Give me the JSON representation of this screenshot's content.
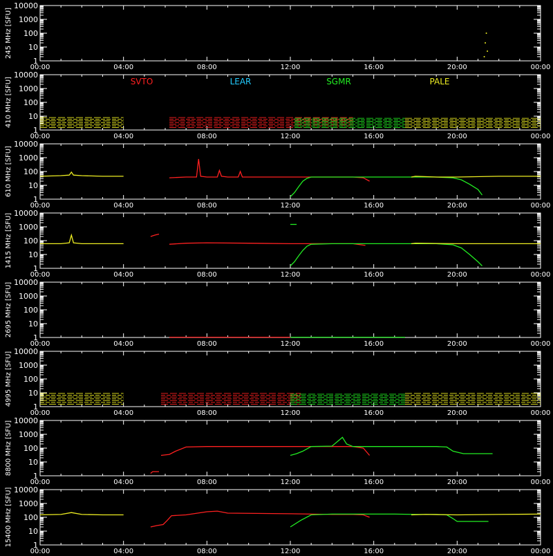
{
  "x_tick_labels": [
    "00:00",
    "04:00",
    "08:00",
    "12:00",
    "16:00",
    "20:00",
    "00:00"
  ],
  "y_tick_labels": [
    "1",
    "10",
    "100",
    "1000",
    "10000"
  ],
  "legend": [
    {
      "name": "SVTO",
      "color": "#ff2020"
    },
    {
      "name": "LEAR",
      "color": "#22ccff"
    },
    {
      "name": "SGMR",
      "color": "#22ee22"
    },
    {
      "name": "PALE",
      "color": "#eeee22"
    }
  ],
  "chart_data": {
    "type": "line",
    "xunit": "hours UT",
    "xlim": [
      0,
      24
    ],
    "ylim": [
      1,
      10000
    ],
    "yscale": "log",
    "background": "#000000",
    "panels": [
      {
        "ylabel": "245 MHz [SFU]",
        "series": [
          {
            "station": "PALE",
            "style": "sparse",
            "points": [
              [
                21.3,
                2
              ],
              [
                21.35,
                20
              ],
              [
                21.4,
                100
              ],
              [
                21.45,
                5
              ]
            ]
          }
        ]
      },
      {
        "ylabel": "410 MHz [SFU]",
        "series": [
          {
            "station": "PALE",
            "style": "band",
            "range": [
              0,
              4
            ],
            "band": [
              1.5,
              8
            ]
          },
          {
            "station": "SVTO",
            "style": "band",
            "range": [
              6.2,
              15
            ],
            "band": [
              1.5,
              8
            ]
          },
          {
            "station": "SGMR",
            "style": "band",
            "range": [
              12.2,
              17.5
            ],
            "band": [
              1.5,
              7
            ]
          },
          {
            "station": "PALE",
            "style": "band",
            "range": [
              17.5,
              24
            ],
            "band": [
              1.5,
              7
            ]
          }
        ]
      },
      {
        "ylabel": "610 MHz [SFU]",
        "series": [
          {
            "station": "PALE",
            "points": [
              [
                0,
                45
              ],
              [
                1.0,
                50
              ],
              [
                1.4,
                55
              ],
              [
                1.5,
                90
              ],
              [
                1.6,
                55
              ],
              [
                2.0,
                50
              ],
              [
                3.0,
                45
              ],
              [
                4.0,
                45
              ]
            ]
          },
          {
            "station": "SVTO",
            "points": [
              [
                6.2,
                35
              ],
              [
                7.0,
                40
              ],
              [
                7.5,
                40
              ],
              [
                7.6,
                800
              ],
              [
                7.7,
                45
              ],
              [
                8.0,
                40
              ],
              [
                8.5,
                40
              ],
              [
                8.6,
                120
              ],
              [
                8.7,
                45
              ],
              [
                9.0,
                40
              ],
              [
                9.5,
                40
              ],
              [
                9.6,
                100
              ],
              [
                9.7,
                40
              ],
              [
                11.0,
                40
              ],
              [
                13.0,
                40
              ],
              [
                14.0,
                40
              ],
              [
                15.0,
                40
              ],
              [
                15.5,
                35
              ],
              [
                15.8,
                20
              ]
            ]
          },
          {
            "station": "SGMR",
            "points": [
              [
                12.0,
                1.5
              ],
              [
                12.2,
                3
              ],
              [
                12.4,
                8
              ],
              [
                12.6,
                20
              ],
              [
                12.8,
                32
              ],
              [
                13.0,
                40
              ],
              [
                14.0,
                40
              ],
              [
                16.0,
                40
              ],
              [
                18.0,
                40
              ],
              [
                19.0,
                40
              ],
              [
                19.8,
                35
              ],
              [
                20.2,
                25
              ],
              [
                20.6,
                12
              ],
              [
                21.0,
                5
              ],
              [
                21.2,
                2
              ]
            ]
          },
          {
            "station": "PALE",
            "points": [
              [
                17.8,
                40
              ],
              [
                18.0,
                45
              ],
              [
                19.0,
                40
              ],
              [
                20.0,
                40
              ],
              [
                22.0,
                45
              ],
              [
                24.0,
                45
              ]
            ]
          }
        ]
      },
      {
        "ylabel": "1415 MHz [SFU]",
        "series": [
          {
            "station": "PALE",
            "points": [
              [
                0,
                60
              ],
              [
                1.0,
                60
              ],
              [
                1.4,
                70
              ],
              [
                1.5,
                250
              ],
              [
                1.6,
                70
              ],
              [
                2.0,
                60
              ],
              [
                3.0,
                60
              ],
              [
                4.0,
                60
              ]
            ]
          },
          {
            "station": "SVTO",
            "points": [
              [
                5.3,
                200
              ],
              [
                5.5,
                250
              ],
              [
                5.7,
                300
              ]
            ]
          },
          {
            "station": "SVTO",
            "points": [
              [
                6.2,
                55
              ],
              [
                7.0,
                65
              ],
              [
                8.0,
                70
              ],
              [
                10.0,
                65
              ],
              [
                12.0,
                60
              ],
              [
                14.0,
                60
              ],
              [
                15.0,
                60
              ],
              [
                15.6,
                45
              ]
            ]
          },
          {
            "station": "SGMR",
            "points": [
              [
                12.0,
                1500
              ],
              [
                12.3,
                1500
              ]
            ]
          },
          {
            "station": "SGMR",
            "points": [
              [
                12.0,
                1.5
              ],
              [
                12.2,
                3
              ],
              [
                12.4,
                8
              ],
              [
                12.6,
                20
              ],
              [
                12.8,
                40
              ],
              [
                13.0,
                55
              ],
              [
                14.0,
                60
              ],
              [
                16.0,
                60
              ],
              [
                18.0,
                60
              ],
              [
                19.0,
                60
              ],
              [
                19.8,
                50
              ],
              [
                20.2,
                30
              ],
              [
                20.6,
                10
              ],
              [
                21.0,
                3
              ],
              [
                21.2,
                1.5
              ]
            ]
          },
          {
            "station": "PALE",
            "points": [
              [
                17.8,
                60
              ],
              [
                18.0,
                65
              ],
              [
                20.0,
                60
              ],
              [
                22.0,
                60
              ],
              [
                24.0,
                60
              ]
            ]
          }
        ]
      },
      {
        "ylabel": "2695 MHz [SFU]",
        "series": [
          {
            "station": "SVTO",
            "points": [
              [
                6.2,
                1.05
              ],
              [
                12.0,
                1.05
              ]
            ]
          },
          {
            "station": "SGMR",
            "points": [
              [
                12.0,
                1.05
              ],
              [
                17.5,
                1.05
              ]
            ]
          }
        ]
      },
      {
        "ylabel": "4995 MHz [SFU]",
        "series": [
          {
            "station": "PALE",
            "style": "band",
            "range": [
              0,
              4
            ],
            "band": [
              1.5,
              9
            ]
          },
          {
            "station": "SVTO",
            "style": "band",
            "range": [
              5.8,
              12.5
            ],
            "band": [
              1.5,
              9
            ]
          },
          {
            "station": "SGMR",
            "style": "band",
            "range": [
              12.0,
              17.5
            ],
            "band": [
              1.5,
              8
            ]
          },
          {
            "station": "PALE",
            "style": "band",
            "range": [
              17.5,
              24
            ],
            "band": [
              1.5,
              9
            ]
          }
        ]
      },
      {
        "ylabel": "8800 MHz [SFU]",
        "series": [
          {
            "station": "SVTO",
            "points": [
              [
                5.3,
                1.5
              ],
              [
                5.4,
                2
              ],
              [
                5.7,
                2
              ]
            ]
          },
          {
            "station": "SVTO",
            "points": [
              [
                5.8,
                30
              ],
              [
                6.2,
                35
              ],
              [
                6.5,
                60
              ],
              [
                7.0,
                120
              ],
              [
                8.0,
                130
              ],
              [
                10.0,
                130
              ],
              [
                12.0,
                130
              ],
              [
                14.0,
                130
              ],
              [
                15.0,
                130
              ],
              [
                15.5,
                100
              ],
              [
                15.8,
                30
              ]
            ]
          },
          {
            "station": "SGMR",
            "points": [
              [
                12.0,
                30
              ],
              [
                12.3,
                40
              ],
              [
                12.6,
                60
              ],
              [
                13.0,
                130
              ],
              [
                14.0,
                140
              ],
              [
                14.5,
                600
              ],
              [
                14.7,
                200
              ],
              [
                15.0,
                130
              ],
              [
                17.0,
                130
              ],
              [
                19.0,
                130
              ],
              [
                19.5,
                120
              ],
              [
                19.8,
                60
              ],
              [
                20.3,
                40
              ],
              [
                21.0,
                40
              ],
              [
                21.7,
                40
              ]
            ]
          }
        ]
      },
      {
        "ylabel": "15400 MHz [SFU]",
        "series": [
          {
            "station": "PALE",
            "points": [
              [
                0,
                150
              ],
              [
                1.0,
                160
              ],
              [
                1.5,
                220
              ],
              [
                2.0,
                160
              ],
              [
                3.0,
                150
              ],
              [
                4.0,
                150
              ]
            ]
          },
          {
            "station": "SVTO",
            "points": [
              [
                5.3,
                20
              ],
              [
                5.6,
                25
              ],
              [
                5.9,
                30
              ],
              [
                6.1,
                60
              ],
              [
                6.3,
                130
              ],
              [
                7.0,
                150
              ],
              [
                8.0,
                250
              ],
              [
                8.5,
                280
              ],
              [
                9.0,
                200
              ],
              [
                12.0,
                180
              ],
              [
                13.0,
                170
              ],
              [
                14.0,
                160
              ],
              [
                15.0,
                160
              ],
              [
                15.5,
                150
              ],
              [
                15.8,
                100
              ]
            ]
          },
          {
            "station": "SGMR",
            "points": [
              [
                12.0,
                20
              ],
              [
                12.5,
                60
              ],
              [
                13.0,
                150
              ],
              [
                14.0,
                170
              ],
              [
                16.0,
                170
              ],
              [
                17.0,
                170
              ],
              [
                18.0,
                160
              ],
              [
                19.0,
                160
              ],
              [
                19.5,
                150
              ],
              [
                19.8,
                80
              ],
              [
                20.0,
                50
              ],
              [
                21.0,
                50
              ],
              [
                21.5,
                50
              ]
            ]
          },
          {
            "station": "PALE",
            "points": [
              [
                17.8,
                150
              ],
              [
                18.5,
                160
              ],
              [
                20.0,
                150
              ],
              [
                22.0,
                160
              ],
              [
                24.0,
                170
              ]
            ]
          }
        ]
      }
    ]
  }
}
